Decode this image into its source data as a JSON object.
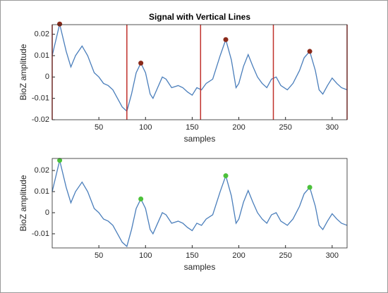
{
  "chart_data": [
    {
      "type": "line",
      "title": "Signal with Vertical Lines",
      "xlabel": "samples",
      "ylabel": "BioZ amplitude",
      "x": [
        0,
        8,
        15,
        20,
        25,
        32,
        38,
        45,
        50,
        55,
        60,
        65,
        70,
        75,
        80,
        85,
        90,
        95,
        100,
        105,
        108,
        112,
        118,
        122,
        128,
        135,
        140,
        145,
        150,
        155,
        160,
        165,
        172,
        180,
        186,
        192,
        197,
        200,
        205,
        210,
        215,
        220,
        225,
        230,
        235,
        240,
        245,
        252,
        258,
        265,
        270,
        276,
        282,
        286,
        290,
        295,
        300,
        305,
        310,
        316
      ],
      "values": [
        0.01,
        0.0248,
        0.012,
        0.0047,
        0.01,
        0.0145,
        0.01,
        0.002,
        0.0,
        -0.003,
        -0.004,
        -0.006,
        -0.01,
        -0.014,
        -0.016,
        -0.008,
        0.002,
        0.0065,
        0.002,
        -0.008,
        -0.01,
        -0.006,
        0.0,
        -0.001,
        -0.005,
        -0.004,
        -0.005,
        -0.007,
        -0.0085,
        -0.005,
        -0.006,
        -0.003,
        -0.001,
        0.01,
        0.0175,
        0.008,
        -0.005,
        -0.003,
        0.005,
        0.0105,
        0.005,
        0.0,
        -0.003,
        -0.005,
        -0.001,
        0.0,
        -0.004,
        -0.006,
        -0.003,
        0.003,
        0.009,
        0.012,
        0.003,
        -0.006,
        -0.008,
        -0.004,
        -0.0005,
        -0.003,
        -0.005,
        -0.006
      ],
      "color": "#4a7ebb",
      "markers": {
        "x": [
          8,
          95,
          186,
          276
        ],
        "values": [
          0.0248,
          0.0065,
          0.0175,
          0.012
        ],
        "color": "#8b2a1a"
      },
      "vlines": {
        "x": [
          0,
          80,
          159,
          237,
          316
        ],
        "color": "#c0302a"
      },
      "xlim": [
        0,
        316
      ],
      "ylim": [
        -0.02,
        0.0245
      ],
      "xticks": [
        50,
        100,
        150,
        200,
        250,
        300
      ],
      "yticks": [
        -0.02,
        -0.01,
        0,
        0.01,
        0.02
      ]
    },
    {
      "type": "line",
      "xlabel": "samples",
      "ylabel": "BioZ amplitude",
      "x": [
        0,
        8,
        15,
        20,
        25,
        32,
        38,
        45,
        50,
        55,
        60,
        65,
        70,
        75,
        80,
        85,
        90,
        95,
        100,
        105,
        108,
        112,
        118,
        122,
        128,
        135,
        140,
        145,
        150,
        155,
        160,
        165,
        172,
        180,
        186,
        192,
        197,
        200,
        205,
        210,
        215,
        220,
        225,
        230,
        235,
        240,
        245,
        252,
        258,
        265,
        270,
        276,
        282,
        286,
        290,
        295,
        300,
        305,
        310,
        316
      ],
      "values": [
        0.01,
        0.0248,
        0.012,
        0.0047,
        0.01,
        0.0145,
        0.01,
        0.002,
        0.0,
        -0.003,
        -0.004,
        -0.006,
        -0.01,
        -0.014,
        -0.016,
        -0.008,
        0.002,
        0.0065,
        0.002,
        -0.008,
        -0.01,
        -0.006,
        0.0,
        -0.001,
        -0.005,
        -0.004,
        -0.005,
        -0.007,
        -0.0085,
        -0.005,
        -0.006,
        -0.003,
        -0.001,
        0.01,
        0.0175,
        0.008,
        -0.005,
        -0.003,
        0.005,
        0.0105,
        0.005,
        0.0,
        -0.003,
        -0.005,
        -0.001,
        0.0,
        -0.004,
        -0.006,
        -0.003,
        0.003,
        0.009,
        0.012,
        0.003,
        -0.006,
        -0.008,
        -0.004,
        -0.0005,
        -0.003,
        -0.005,
        -0.006
      ],
      "color": "#4a7ebb",
      "markers": {
        "x": [
          8,
          95,
          186,
          276
        ],
        "values": [
          0.0248,
          0.0065,
          0.0175,
          0.012
        ],
        "color": "#4cc13a"
      },
      "xlim": [
        0,
        316
      ],
      "ylim": [
        -0.0167,
        0.0257
      ],
      "xticks": [
        50,
        100,
        150,
        200,
        250,
        300
      ],
      "yticks": [
        -0.01,
        0,
        0.01,
        0.02
      ]
    }
  ]
}
